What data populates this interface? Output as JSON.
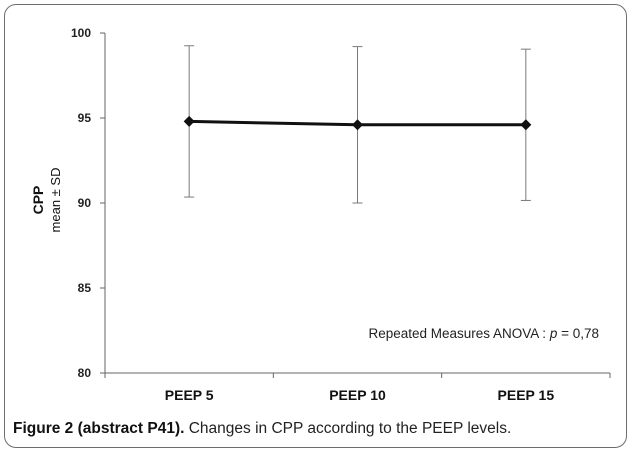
{
  "chart_data": {
    "type": "line",
    "categories": [
      "PEEP 5",
      "PEEP 10",
      "PEEP 15"
    ],
    "series": [
      {
        "values": [
          94.8,
          94.6,
          94.6
        ],
        "sd": [
          4.45,
          4.6,
          4.45
        ]
      }
    ],
    "ylabel": "CPP",
    "ylabel_sub": "mean ± SD",
    "ylim": [
      80,
      100
    ],
    "yticks": [
      "80",
      "85",
      "90",
      "95",
      "100"
    ],
    "annotation": {
      "prefix": "Repeated Measures ANOVA : ",
      "p_symbol": "p",
      "suffix": " = 0,78"
    },
    "grid": false,
    "line_color": "#111111",
    "errorbar_color": "#7a7a7a"
  },
  "caption": {
    "bold": "Figure 2 (abstract P41).",
    "text": " Changes in CPP according to the PEEP levels."
  }
}
